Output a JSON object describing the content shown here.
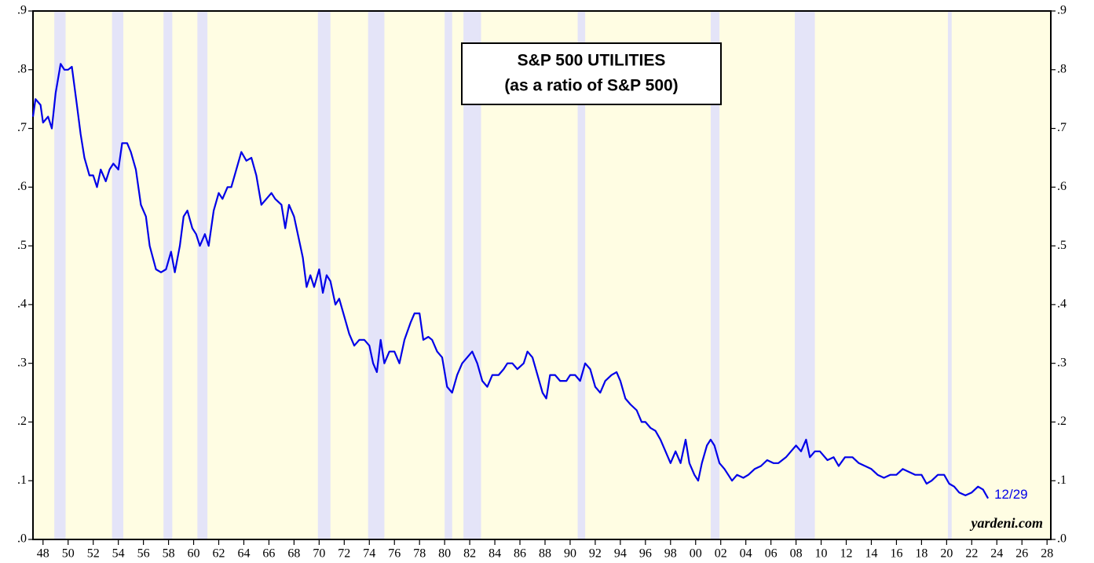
{
  "chart_data": {
    "type": "line",
    "title": "S&P 500 UTILITIES",
    "subtitle": "(as a ratio of S&P 500)",
    "end_label": "12/29",
    "source": "yardeni.com",
    "xlim": [
      1947.2,
      2028.3
    ],
    "ylim": [
      0,
      0.9
    ],
    "xticks": [
      {
        "value": 1948,
        "label": "48"
      },
      {
        "value": 1950,
        "label": "50"
      },
      {
        "value": 1952,
        "label": "52"
      },
      {
        "value": 1954,
        "label": "54"
      },
      {
        "value": 1956,
        "label": "56"
      },
      {
        "value": 1958,
        "label": "58"
      },
      {
        "value": 1960,
        "label": "60"
      },
      {
        "value": 1962,
        "label": "62"
      },
      {
        "value": 1964,
        "label": "64"
      },
      {
        "value": 1966,
        "label": "66"
      },
      {
        "value": 1968,
        "label": "68"
      },
      {
        "value": 1970,
        "label": "70"
      },
      {
        "value": 1972,
        "label": "72"
      },
      {
        "value": 1974,
        "label": "74"
      },
      {
        "value": 1976,
        "label": "76"
      },
      {
        "value": 1978,
        "label": "78"
      },
      {
        "value": 1980,
        "label": "80"
      },
      {
        "value": 1982,
        "label": "82"
      },
      {
        "value": 1984,
        "label": "84"
      },
      {
        "value": 1986,
        "label": "86"
      },
      {
        "value": 1988,
        "label": "88"
      },
      {
        "value": 1990,
        "label": "90"
      },
      {
        "value": 1992,
        "label": "92"
      },
      {
        "value": 1994,
        "label": "94"
      },
      {
        "value": 1996,
        "label": "96"
      },
      {
        "value": 1998,
        "label": "98"
      },
      {
        "value": 2000,
        "label": "00"
      },
      {
        "value": 2002,
        "label": "02"
      },
      {
        "value": 2004,
        "label": "04"
      },
      {
        "value": 2006,
        "label": "06"
      },
      {
        "value": 2008,
        "label": "08"
      },
      {
        "value": 2010,
        "label": "10"
      },
      {
        "value": 2012,
        "label": "12"
      },
      {
        "value": 2014,
        "label": "14"
      },
      {
        "value": 2016,
        "label": "16"
      },
      {
        "value": 2018,
        "label": "18"
      },
      {
        "value": 2020,
        "label": "20"
      },
      {
        "value": 2022,
        "label": "22"
      },
      {
        "value": 2024,
        "label": "24"
      },
      {
        "value": 2026,
        "label": "26"
      },
      {
        "value": 2028,
        "label": "28"
      }
    ],
    "yticks": [
      {
        "value": 0,
        "label": ".0"
      },
      {
        "value": 0.1,
        "label": ".1"
      },
      {
        "value": 0.2,
        "label": ".2"
      },
      {
        "value": 0.3,
        "label": ".3"
      },
      {
        "value": 0.4,
        "label": ".4"
      },
      {
        "value": 0.5,
        "label": ".5"
      },
      {
        "value": 0.6,
        "label": ".6"
      },
      {
        "value": 0.7,
        "label": ".7"
      },
      {
        "value": 0.8,
        "label": ".8"
      },
      {
        "value": 0.9,
        "label": ".9"
      }
    ],
    "background_color": "#fffde3",
    "recession_color": "#e4e4f8",
    "recessions": [
      [
        1948.9,
        1949.8
      ],
      [
        1953.5,
        1954.4
      ],
      [
        1957.6,
        1958.3
      ],
      [
        1960.3,
        1961.1
      ],
      [
        1969.9,
        1970.9
      ],
      [
        1973.9,
        1975.2
      ],
      [
        1980.0,
        1980.6
      ],
      [
        1981.5,
        1982.9
      ],
      [
        1990.6,
        1991.2
      ],
      [
        2001.2,
        2001.9
      ],
      [
        2007.9,
        2009.5
      ],
      [
        2020.1,
        2020.4
      ]
    ],
    "x": [
      1947.2,
      1947.4,
      1947.8,
      1948.0,
      1948.4,
      1948.7,
      1949.0,
      1949.4,
      1949.7,
      1950.0,
      1950.3,
      1950.7,
      1951.0,
      1951.3,
      1951.7,
      1952.0,
      1952.3,
      1952.6,
      1953.0,
      1953.3,
      1953.6,
      1954.0,
      1954.3,
      1954.7,
      1955.0,
      1955.4,
      1955.8,
      1956.2,
      1956.5,
      1957.0,
      1957.4,
      1957.8,
      1958.2,
      1958.5,
      1958.9,
      1959.2,
      1959.5,
      1959.9,
      1960.2,
      1960.5,
      1960.9,
      1961.2,
      1961.6,
      1962.0,
      1962.3,
      1962.7,
      1963.0,
      1963.4,
      1963.8,
      1964.2,
      1964.6,
      1965.0,
      1965.4,
      1965.8,
      1966.2,
      1966.5,
      1967.0,
      1967.3,
      1967.6,
      1968.0,
      1968.4,
      1968.7,
      1969.0,
      1969.3,
      1969.6,
      1970.0,
      1970.3,
      1970.6,
      1970.9,
      1971.3,
      1971.6,
      1972.0,
      1972.4,
      1972.8,
      1973.2,
      1973.6,
      1974.0,
      1974.3,
      1974.6,
      1974.9,
      1975.2,
      1975.6,
      1976.0,
      1976.4,
      1976.8,
      1977.3,
      1977.6,
      1978.0,
      1978.3,
      1978.7,
      1979.0,
      1979.4,
      1979.8,
      1980.2,
      1980.6,
      1981.0,
      1981.4,
      1981.8,
      1982.2,
      1982.6,
      1983.0,
      1983.4,
      1983.8,
      1984.3,
      1984.7,
      1985.0,
      1985.4,
      1985.8,
      1986.3,
      1986.6,
      1987.0,
      1987.4,
      1987.8,
      1988.1,
      1988.4,
      1988.8,
      1989.2,
      1989.7,
      1990.0,
      1990.4,
      1990.8,
      1991.2,
      1991.6,
      1992.0,
      1992.4,
      1992.8,
      1993.3,
      1993.7,
      1994.0,
      1994.4,
      1994.8,
      1995.3,
      1995.7,
      1996.0,
      1996.4,
      1996.8,
      1997.2,
      1997.6,
      1998.0,
      1998.4,
      1998.8,
      1999.2,
      1999.5,
      1999.9,
      2000.2,
      2000.5,
      2000.9,
      2001.2,
      2001.5,
      2001.9,
      2002.3,
      2002.6,
      2002.9,
      2003.3,
      2003.8,
      2004.2,
      2004.7,
      2005.2,
      2005.7,
      2006.2,
      2006.6,
      2007.2,
      2007.6,
      2008.0,
      2008.4,
      2008.8,
      2009.1,
      2009.5,
      2009.9,
      2010.5,
      2011.0,
      2011.4,
      2011.9,
      2012.5,
      2013.0,
      2013.5,
      2014.0,
      2014.5,
      2015.0,
      2015.5,
      2016.0,
      2016.5,
      2017.0,
      2017.5,
      2018.0,
      2018.4,
      2018.8,
      2019.3,
      2019.8,
      2020.2,
      2020.6,
      2021.0,
      2021.5,
      2022.0,
      2022.5,
      2022.9,
      2023.3
    ],
    "series": [
      {
        "name": "S&P 500 Utilities ratio",
        "color": "#0000e8",
        "values": [
          0.72,
          0.75,
          0.74,
          0.71,
          0.72,
          0.7,
          0.76,
          0.81,
          0.8,
          0.8,
          0.805,
          0.74,
          0.69,
          0.65,
          0.62,
          0.62,
          0.6,
          0.63,
          0.61,
          0.63,
          0.64,
          0.63,
          0.675,
          0.675,
          0.66,
          0.63,
          0.57,
          0.55,
          0.5,
          0.46,
          0.455,
          0.46,
          0.49,
          0.455,
          0.5,
          0.55,
          0.56,
          0.53,
          0.52,
          0.5,
          0.52,
          0.5,
          0.56,
          0.59,
          0.58,
          0.6,
          0.6,
          0.63,
          0.66,
          0.645,
          0.65,
          0.62,
          0.57,
          0.58,
          0.59,
          0.58,
          0.57,
          0.53,
          0.57,
          0.55,
          0.51,
          0.48,
          0.43,
          0.45,
          0.43,
          0.46,
          0.42,
          0.45,
          0.44,
          0.4,
          0.41,
          0.38,
          0.35,
          0.33,
          0.34,
          0.34,
          0.33,
          0.3,
          0.285,
          0.34,
          0.3,
          0.32,
          0.32,
          0.3,
          0.34,
          0.37,
          0.385,
          0.385,
          0.34,
          0.345,
          0.34,
          0.32,
          0.31,
          0.26,
          0.25,
          0.28,
          0.3,
          0.31,
          0.32,
          0.3,
          0.27,
          0.26,
          0.28,
          0.28,
          0.29,
          0.3,
          0.3,
          0.29,
          0.3,
          0.32,
          0.31,
          0.28,
          0.25,
          0.24,
          0.28,
          0.28,
          0.27,
          0.27,
          0.28,
          0.28,
          0.27,
          0.3,
          0.29,
          0.26,
          0.25,
          0.27,
          0.28,
          0.285,
          0.27,
          0.24,
          0.23,
          0.22,
          0.2,
          0.2,
          0.19,
          0.185,
          0.17,
          0.15,
          0.13,
          0.15,
          0.13,
          0.17,
          0.13,
          0.11,
          0.1,
          0.13,
          0.16,
          0.17,
          0.16,
          0.13,
          0.12,
          0.11,
          0.1,
          0.11,
          0.105,
          0.11,
          0.12,
          0.125,
          0.135,
          0.13,
          0.13,
          0.14,
          0.15,
          0.16,
          0.15,
          0.17,
          0.14,
          0.15,
          0.15,
          0.135,
          0.14,
          0.125,
          0.14,
          0.14,
          0.13,
          0.125,
          0.12,
          0.11,
          0.105,
          0.11,
          0.11,
          0.12,
          0.115,
          0.11,
          0.11,
          0.095,
          0.1,
          0.11,
          0.11,
          0.095,
          0.09,
          0.08,
          0.075,
          0.08,
          0.09,
          0.085,
          0.07
        ]
      }
    ]
  }
}
